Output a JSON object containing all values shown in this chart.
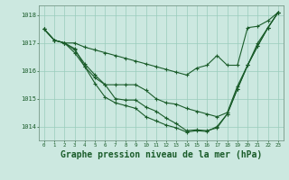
{
  "background_color": "#cce8e0",
  "grid_color": "#99ccbb",
  "line_color": "#1a5c2a",
  "xlabel": "Graphe pression niveau de la mer (hPa)",
  "xlabel_fontsize": 7,
  "ytick_values": [
    1014,
    1015,
    1016,
    1017,
    1018
  ],
  "ylim": [
    1013.5,
    1018.35
  ],
  "xlim": [
    -0.5,
    23.5
  ],
  "line1": [
    1017.5,
    1017.1,
    1017.0,
    1017.0,
    1016.85,
    1016.75,
    1016.65,
    1016.55,
    1016.45,
    1016.35,
    1016.25,
    1016.15,
    1016.05,
    1015.95,
    1015.85,
    1016.1,
    1016.2,
    1016.55,
    1016.2,
    1016.2,
    1017.55,
    1017.6,
    1017.8,
    1018.1
  ],
  "line2": [
    1017.5,
    1017.1,
    1017.0,
    1016.8,
    1016.15,
    1015.75,
    1015.5,
    1015.5,
    1015.5,
    1015.5,
    1015.3,
    1015.0,
    1014.85,
    1014.8,
    1014.65,
    1014.55,
    1014.45,
    1014.35,
    1014.5,
    1015.45,
    1016.2,
    1017.0,
    1017.55,
    1018.1
  ],
  "line3": [
    1017.5,
    1017.1,
    1017.0,
    1016.65,
    1016.15,
    1015.55,
    1015.05,
    1014.85,
    1014.75,
    1014.65,
    1014.35,
    1014.2,
    1014.05,
    1013.95,
    1013.8,
    1013.85,
    1013.82,
    1014.0,
    1014.45,
    1015.35,
    1016.2,
    1016.9,
    1017.55,
    1018.1
  ],
  "line4": [
    1017.5,
    1017.1,
    1017.0,
    1016.75,
    1016.25,
    1015.85,
    1015.5,
    1015.0,
    1014.95,
    1014.95,
    1014.7,
    1014.55,
    1014.3,
    1014.1,
    1013.85,
    1013.88,
    1013.85,
    1013.95,
    1014.45,
    1015.35,
    1016.2,
    1016.9,
    1017.55,
    1018.1
  ]
}
